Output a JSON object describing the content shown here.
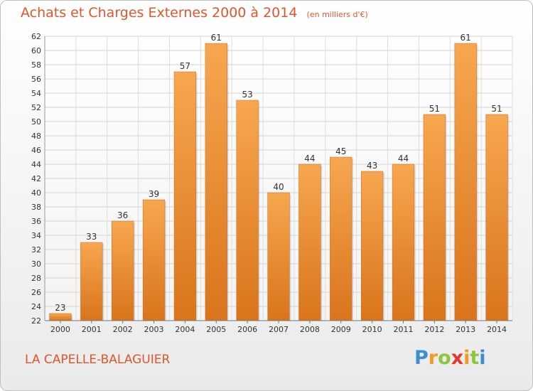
{
  "header": {
    "title": "Achats et Charges Externes 2000 à 2014",
    "unit": "(en milliers d'€)"
  },
  "commune": "LA CAPELLE-BALAGUIER",
  "logo": {
    "text": "Proxiti",
    "letters": [
      "P",
      "r",
      "o",
      "x",
      "i",
      "t",
      "i"
    ]
  },
  "colors": {
    "title": "#e0562a",
    "bar_light": "#f7a74f",
    "bar_dark": "#d9741c"
  },
  "chart_data": {
    "type": "bar",
    "title": "Achats et Charges Externes 2000 à 2014",
    "categories": [
      "2000",
      "2001",
      "2002",
      "2003",
      "2004",
      "2005",
      "2006",
      "2007",
      "2008",
      "2009",
      "2010",
      "2011",
      "2012",
      "2013",
      "2014"
    ],
    "values": [
      23,
      33,
      36,
      39,
      57,
      61,
      53,
      40,
      44,
      45,
      43,
      44,
      51,
      61,
      51
    ],
    "ylim": [
      22,
      62
    ],
    "yticks": [
      22,
      24,
      26,
      28,
      30,
      32,
      34,
      36,
      38,
      40,
      42,
      44,
      46,
      48,
      50,
      52,
      54,
      56,
      58,
      60,
      62
    ],
    "xlabel": "",
    "ylabel": "",
    "grid": true,
    "data_labels": true
  }
}
